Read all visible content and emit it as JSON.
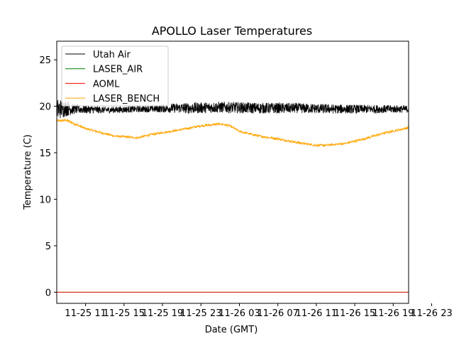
{
  "chart_data": {
    "type": "line",
    "title": "APOLLO Laser Temperatures",
    "xlabel": "Date (GMT)",
    "ylabel": "Temperature (C)",
    "xlim_hours": [
      5.5,
      23.8
    ],
    "ylim": [
      -1.2,
      27
    ],
    "yticks": [
      0,
      5,
      10,
      15,
      20,
      25
    ],
    "xticks": [
      {
        "label": "11-25 11",
        "hour": 7
      },
      {
        "label": "11-25 15",
        "hour": 9
      },
      {
        "label": "11-25 19",
        "hour": 11
      },
      {
        "label": "11-25 23",
        "hour": 13
      },
      {
        "label": "11-26 03",
        "hour": 15
      },
      {
        "label": "11-26 07",
        "hour": 17
      },
      {
        "label": "11-26 11",
        "hour": 19
      },
      {
        "label": "11-26 15",
        "hour": 21
      },
      {
        "label": "11-26 19",
        "hour": 23
      },
      {
        "label": "11-26 23",
        "hour": 25
      }
    ],
    "legend_position": "top-left",
    "series": [
      {
        "name": "Utah Air",
        "color": "#000000",
        "x": [
          5.5,
          5.8,
          6.5,
          8.0,
          10.0,
          11.5,
          12.5,
          14.0,
          16.0,
          18.0,
          20.0,
          22.0,
          23.8
        ],
        "y": [
          19.6,
          19.8,
          19.7,
          19.6,
          19.7,
          19.8,
          19.8,
          19.9,
          19.8,
          19.8,
          19.7,
          19.7,
          19.7
        ],
        "noise": [
          1.2,
          1.0,
          0.5,
          0.35,
          0.35,
          0.5,
          0.6,
          0.6,
          0.6,
          0.55,
          0.5,
          0.45,
          0.4
        ]
      },
      {
        "name": "LASER_AIR",
        "color": "#008000",
        "x": [
          5.5,
          23.8
        ],
        "y": [
          0,
          0
        ],
        "noise": [
          0,
          0
        ]
      },
      {
        "name": "AOML",
        "color": "#ff0000",
        "x": [
          5.5,
          23.8
        ],
        "y": [
          0,
          0
        ],
        "noise": [
          0,
          0
        ]
      },
      {
        "name": "LASER_BENCH",
        "color": "#ffa500",
        "x": [
          5.5,
          6.0,
          7.0,
          8.5,
          9.7,
          10.5,
          12.0,
          13.0,
          14.0,
          14.5,
          15.0,
          16.0,
          17.0,
          18.0,
          19.0,
          19.5,
          20.5,
          21.5,
          22.5,
          23.8
        ],
        "y": [
          18.4,
          18.5,
          17.6,
          16.8,
          16.6,
          17.0,
          17.5,
          17.9,
          18.1,
          17.9,
          17.3,
          16.8,
          16.5,
          16.1,
          15.8,
          15.8,
          16.0,
          16.5,
          17.1,
          17.7
        ],
        "noise": [
          0.15,
          0.15,
          0.12,
          0.12,
          0.12,
          0.12,
          0.12,
          0.12,
          0.12,
          0.12,
          0.12,
          0.12,
          0.12,
          0.12,
          0.12,
          0.12,
          0.12,
          0.12,
          0.12,
          0.12
        ]
      }
    ]
  }
}
